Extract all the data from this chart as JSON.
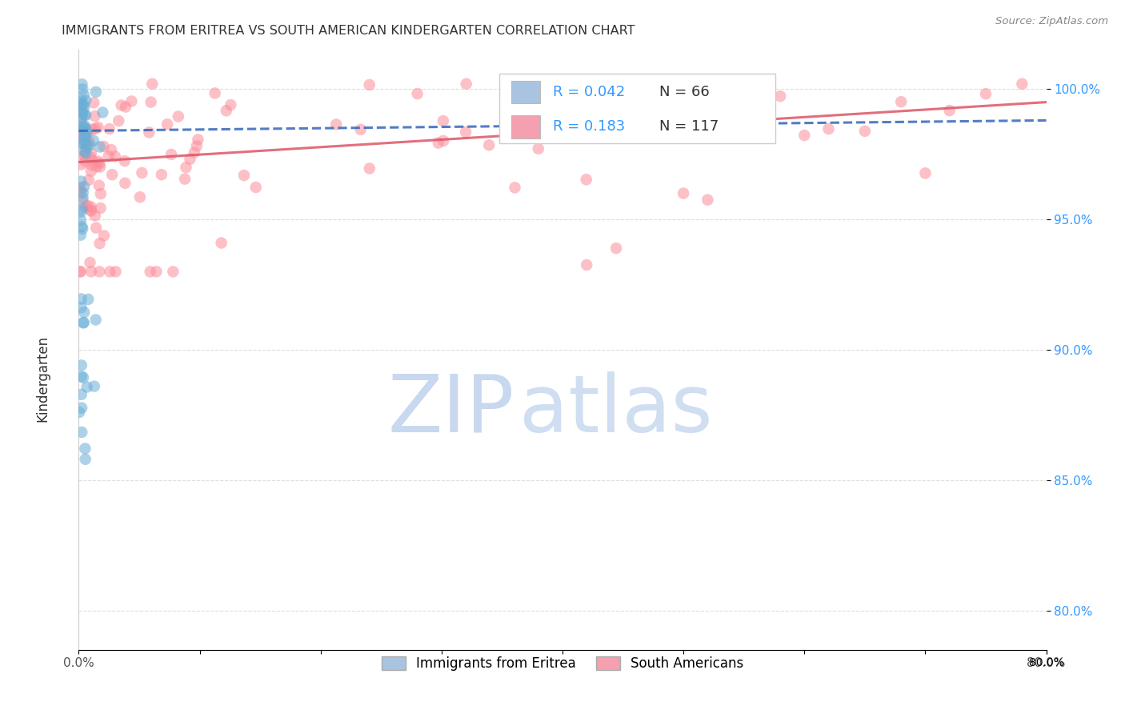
{
  "title": "IMMIGRANTS FROM ERITREA VS SOUTH AMERICAN KINDERGARTEN CORRELATION CHART",
  "source": "Source: ZipAtlas.com",
  "ylabel": "Kindergarten",
  "ytick_labels": [
    "80.0%",
    "85.0%",
    "90.0%",
    "95.0%",
    "100.0%"
  ],
  "ytick_values": [
    0.8,
    0.85,
    0.9,
    0.95,
    1.0
  ],
  "xlim": [
    0.0,
    0.8
  ],
  "ylim": [
    0.785,
    1.015
  ],
  "legend1_r": "0.042",
  "legend1_n": "66",
  "legend2_r": "0.183",
  "legend2_n": "117",
  "legend1_color": "#a8c4e0",
  "legend2_color": "#f4a0b0",
  "eritrea_color": "#6baed6",
  "south_american_color": "#fc8d9a",
  "trendline1_color": "#3366bb",
  "trendline2_color": "#dd5566",
  "watermark_zip_color": "#c8d8ee",
  "watermark_atlas_color": "#b0c8e8",
  "background_color": "#ffffff",
  "grid_color": "#dddddd",
  "ytick_color": "#3399ff",
  "title_color": "#333333",
  "source_color": "#888888"
}
